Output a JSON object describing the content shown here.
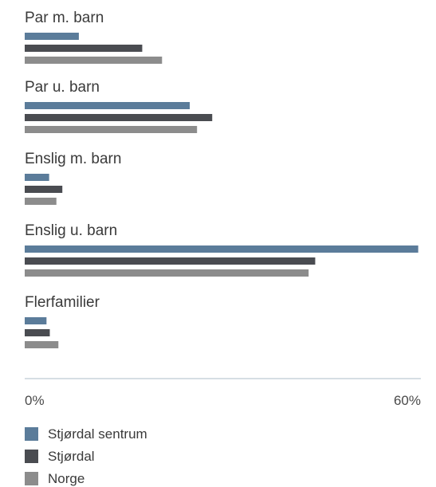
{
  "chart_data": {
    "type": "bar",
    "orientation": "horizontal",
    "categories": [
      "Par m. barn",
      "Par u. barn",
      "Enslig m. barn",
      "Enslig u. barn",
      "Flerfamilier"
    ],
    "series": [
      {
        "name": "Stjørdal sentrum",
        "values": [
          8.2,
          25.0,
          3.7,
          59.6,
          3.3
        ]
      },
      {
        "name": "Stjørdal",
        "values": [
          17.8,
          28.4,
          5.7,
          44.0,
          3.8
        ]
      },
      {
        "name": "Norge",
        "values": [
          20.8,
          26.1,
          4.8,
          43.0,
          5.1
        ]
      }
    ],
    "xlim": [
      0,
      60
    ],
    "x_ticks": [
      "0%",
      "60%"
    ],
    "grid": false,
    "legend_position": "bottom-left",
    "colors": [
      "#5b7c9a",
      "#4a4c51",
      "#8c8c8c"
    ],
    "axis_color": "#c9d3dc"
  }
}
